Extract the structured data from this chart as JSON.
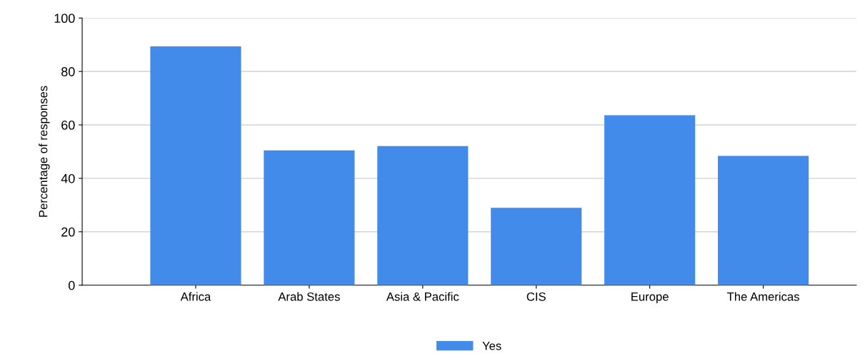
{
  "chart_data": {
    "type": "bar",
    "ylabel": "Percentage of responses",
    "categories": [
      "Africa",
      "Arab States",
      "Asia & Pacific",
      "CIS",
      "Europe",
      "The Americas"
    ],
    "series": [
      {
        "name": "Yes",
        "color": "#428bea",
        "values": [
          89.4,
          50.5,
          52.1,
          29,
          63.6,
          48.4
        ]
      }
    ],
    "ylim": [
      0,
      100
    ],
    "yticks": [
      0,
      20,
      40,
      60,
      80,
      100
    ],
    "grid": "y",
    "legend": "bottom"
  }
}
